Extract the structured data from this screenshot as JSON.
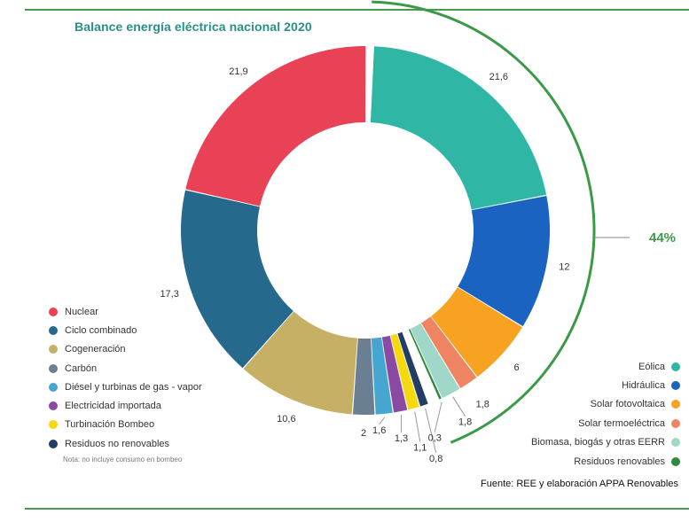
{
  "title": "Balance energía eléctrica nacional 2020",
  "chart_data": {
    "type": "pie",
    "title": "Balance energía eléctrica nacional 2020",
    "donut": true,
    "series": [
      {
        "name": "Eólica",
        "value": 21.6,
        "label": "21,6",
        "color": "#2fb6a5",
        "group": "renovable"
      },
      {
        "name": "Hidráulica",
        "value": 12,
        "label": "12",
        "color": "#1a63c0",
        "group": "renovable"
      },
      {
        "name": "Solar fotovoltaica",
        "value": 6,
        "label": "6",
        "color": "#f7a321",
        "group": "renovable"
      },
      {
        "name": "Solar termoeléctrica",
        "value": 1.8,
        "label": "1,8",
        "color": "#ef8462",
        "group": "renovable"
      },
      {
        "name": "Biomasa, biogás y otras EERR",
        "value": 1.8,
        "label": "1,8",
        "color": "#9fd8c8",
        "group": "renovable"
      },
      {
        "name": "Residuos renovables",
        "value": 0.3,
        "label": "0,3",
        "color": "#2e8b3e",
        "group": "renovable"
      },
      {
        "name": "Residuos no renovables",
        "value": 0.8,
        "label": "0,8",
        "color": "#233e66",
        "group": "no-renovable"
      },
      {
        "name": "Turbinación Bombeo",
        "value": 1.1,
        "label": "1,1",
        "color": "#f6d80f",
        "group": "no-renovable"
      },
      {
        "name": "Electricidad importada",
        "value": 1.3,
        "label": "1,3",
        "color": "#8a4aa3",
        "group": "no-renovable"
      },
      {
        "name": "Diésel y turbinas de gas - vapor",
        "value": 1.6,
        "label": "1,6",
        "color": "#45a6cf",
        "group": "no-renovable"
      },
      {
        "name": "Carbón",
        "value": 2,
        "label": "2",
        "color": "#6a7f91",
        "group": "no-renovable"
      },
      {
        "name": "Cogeneración",
        "value": 10.6,
        "label": "10,6",
        "color": "#c6b066",
        "group": "no-renovable"
      },
      {
        "name": "Ciclo combinado",
        "value": 17.3,
        "label": "17,3",
        "color": "#25698c",
        "group": "no-renovable"
      },
      {
        "name": "Nuclear",
        "value": 21.9,
        "label": "21,9",
        "color": "#e94257",
        "group": "no-renovable"
      }
    ],
    "annotation": {
      "text": "44%",
      "color": "#3b9a47"
    }
  },
  "legend_left": [
    {
      "label": "Nuclear",
      "color": "#e94257"
    },
    {
      "label": "Ciclo combinado",
      "color": "#25698c"
    },
    {
      "label": "Cogeneración",
      "color": "#c6b066"
    },
    {
      "label": "Carbón",
      "color": "#6a7f91"
    },
    {
      "label": "Diésel y turbinas de gas - vapor",
      "color": "#45a6cf"
    },
    {
      "label": "Electricidad importada",
      "color": "#8a4aa3"
    },
    {
      "label": "Turbinación Bombeo",
      "color": "#f6d80f"
    },
    {
      "label": "Residuos no renovables",
      "color": "#233e66"
    }
  ],
  "note": "Nota: no incluye consumo en bombeo",
  "legend_right": [
    {
      "label": "Eólica",
      "color": "#2fb6a5"
    },
    {
      "label": "Hidráulica",
      "color": "#1a63c0"
    },
    {
      "label": "Solar fotovoltaica",
      "color": "#f7a321"
    },
    {
      "label": "Solar termoeléctrica",
      "color": "#ef8462"
    },
    {
      "label": "Biomasa, biogás y otras EERR",
      "color": "#9fd8c8"
    },
    {
      "label": "Residuos renovables",
      "color": "#2e8b3e"
    }
  ],
  "source": "Fuente: REE y elaboración APPA Renovables"
}
